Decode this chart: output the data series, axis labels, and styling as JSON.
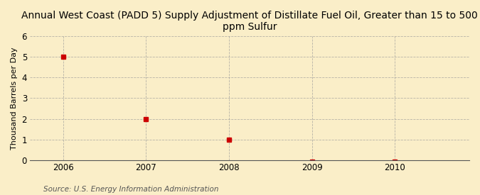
{
  "title": "Annual West Coast (PADD 5) Supply Adjustment of Distillate Fuel Oil, Greater than 15 to 500\nppm Sulfur",
  "ylabel": "Thousand Barrels per Day",
  "source_text": "Source: U.S. Energy Information Administration",
  "x_values": [
    2006,
    2007,
    2008,
    2009,
    2010
  ],
  "y_values": [
    5,
    2,
    1,
    -0.05,
    -0.05
  ],
  "xlim": [
    2005.6,
    2010.9
  ],
  "ylim": [
    0,
    6
  ],
  "yticks": [
    0,
    1,
    2,
    3,
    4,
    5,
    6
  ],
  "xticks": [
    2006,
    2007,
    2008,
    2009,
    2010
  ],
  "marker_color": "#cc0000",
  "marker": "s",
  "marker_size": 4,
  "background_color": "#faeec8",
  "plot_bg_color": "#faeec8",
  "grid_color": "#999999",
  "title_fontsize": 10,
  "axis_label_fontsize": 8,
  "tick_fontsize": 8.5,
  "source_fontsize": 7.5
}
